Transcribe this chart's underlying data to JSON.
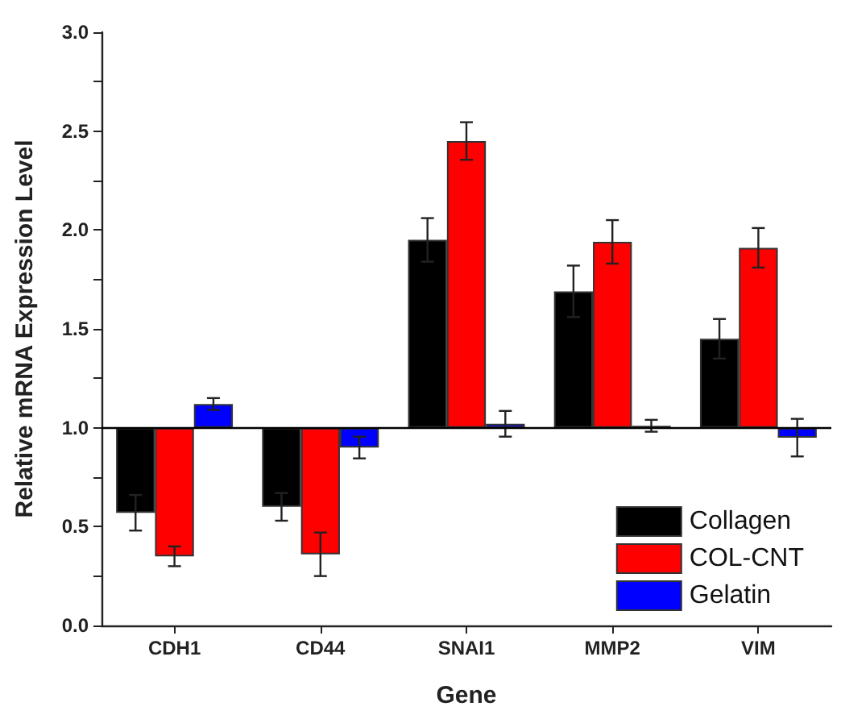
{
  "chart_data": {
    "type": "bar",
    "xlabel": "Gene",
    "ylabel": "Relative mRNA Expression Level",
    "categories": [
      "CDH1",
      "CD44",
      "SNAI1",
      "MMP2",
      "VIM"
    ],
    "series": [
      {
        "name": "Collagen",
        "color": "#000000",
        "base": [
          1,
          1,
          1,
          1,
          1
        ],
        "values": [
          -0.43,
          -0.4,
          0.95,
          0.69,
          0.45
        ],
        "errors": [
          0.09,
          0.07,
          0.11,
          0.13,
          0.1
        ]
      },
      {
        "name": "COL-CNT",
        "color": "#ff0000",
        "base": [
          1,
          1,
          1,
          1,
          1
        ],
        "values": [
          -0.65,
          -0.64,
          1.45,
          0.94,
          0.91
        ],
        "errors": [
          0.05,
          0.11,
          0.095,
          0.11,
          0.1
        ]
      },
      {
        "name": "Gelatin",
        "color": "#0000ff",
        "base": [
          1,
          1,
          1,
          1,
          1
        ],
        "values": [
          0.12,
          -0.1,
          0.02,
          0.01,
          -0.05
        ],
        "errors": [
          0.03,
          0.055,
          0.065,
          0.03,
          0.095
        ]
      }
    ],
    "ylim": [
      0,
      3
    ],
    "yticks": [
      {
        "value": 0,
        "label": "0.0"
      },
      {
        "value": 0.25,
        "label": null
      },
      {
        "value": 0.5,
        "label": "0.5"
      },
      {
        "value": 0.75,
        "label": null
      },
      {
        "value": 1,
        "label": "1.0"
      },
      {
        "value": 1.25,
        "label": null
      },
      {
        "value": 1.5,
        "label": "1.5"
      },
      {
        "value": 1.75,
        "label": null
      },
      {
        "value": 2,
        "label": "2.0"
      },
      {
        "value": 2.25,
        "label": null
      },
      {
        "value": 2.5,
        "label": "2.5"
      },
      {
        "value": 2.75,
        "label": null
      },
      {
        "value": 3,
        "label": "3.0"
      }
    ],
    "ref_lines": [
      {
        "axis": "y",
        "value": 1,
        "label": null,
        "color": "#000000"
      }
    ],
    "legend": "bottom right",
    "grid": false
  }
}
